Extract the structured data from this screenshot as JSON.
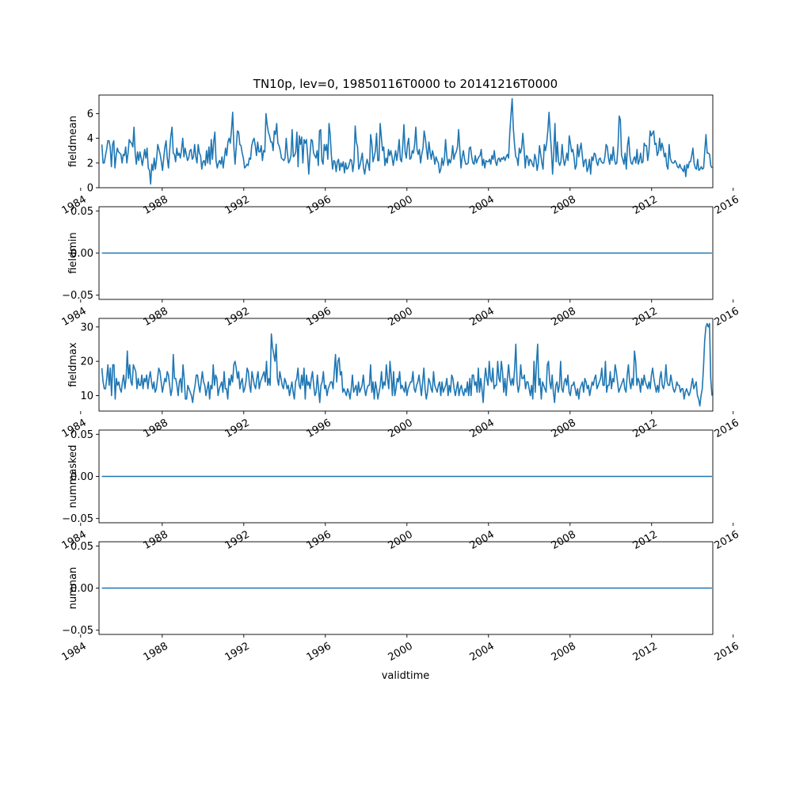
{
  "chart_data": {
    "type": "line",
    "title": "TN10p, lev=0, 19850116T0000 to 20141216T0000",
    "xlabel": "validtime",
    "line_color": "#1f77b4",
    "x_range": [
      "1985-01-16",
      "2014-12-16"
    ],
    "x_ticks": [
      "1984",
      "1988",
      "1992",
      "1996",
      "2000",
      "2004",
      "2008",
      "2012",
      "2016"
    ],
    "x_lim": [
      1984.9,
      2015.0
    ],
    "panels": [
      {
        "ylabel": "fieldmean",
        "ylim": [
          0,
          7.5
        ],
        "y_ticks": [
          "0",
          "2",
          "4",
          "6"
        ],
        "y_tick_values": [
          0,
          2,
          4,
          6
        ],
        "values": [
          3.5,
          2.0,
          2.0,
          2.6,
          3.1,
          3.8,
          3.8,
          3.3,
          1.7,
          3.5,
          3.8,
          1.6,
          2.6,
          3.2,
          2.9,
          2.8,
          2.7,
          2.0,
          2.7,
          2.6,
          3.3,
          2.0,
          2.8,
          3.9,
          3.7,
          3.6,
          3.3,
          4.9,
          2.8,
          1.9,
          2.9,
          2.2,
          2.9,
          2.4,
          1.8,
          2.4,
          3.1,
          2.4,
          3.2,
          1.6,
          1.4,
          0.3,
          1.9,
          1.4,
          2.4,
          1.5,
          2.3,
          3.5,
          3.1,
          2.7,
          2.1,
          1.4,
          2.4,
          3.3,
          3.8,
          2.4,
          1.6,
          3.0,
          4.2,
          4.9,
          2.8,
          2.7,
          2.1,
          3.2,
          2.6,
          2.8,
          2.4,
          3.1,
          4.0,
          2.5,
          3.2,
          2.7,
          2.2,
          2.4,
          3.0,
          3.1,
          2.3,
          2.5,
          3.5,
          2.5,
          2.0,
          3.5,
          2.8,
          2.6,
          1.5,
          2.1,
          2.2,
          1.8,
          3.0,
          2.0,
          3.3,
          1.9,
          3.9,
          2.3,
          3.7,
          4.5,
          2.2,
          1.6,
          2.0,
          2.2,
          1.9,
          2.5,
          1.6,
          2.4,
          3.2,
          2.6,
          3.7,
          4.0,
          3.6,
          4.7,
          6.1,
          3.3,
          1.9,
          3.3,
          4.6,
          4.5,
          3.5,
          3.4,
          2.8,
          2.4,
          1.6,
          1.7,
          1.9,
          1.8,
          2.4,
          2.3,
          3.4,
          3.8,
          4.0,
          3.4,
          2.6,
          3.7,
          2.9,
          2.9,
          3.4,
          2.2,
          3.0,
          2.9,
          6.0,
          5.1,
          4.5,
          4.2,
          3.7,
          3.7,
          3.0,
          4.6,
          4.3,
          5.2,
          3.6,
          3.4,
          3.0,
          2.4,
          2.3,
          2.2,
          2.4,
          4.0,
          2.8,
          2.0,
          2.2,
          2.6,
          4.7,
          2.5,
          2.6,
          2.9,
          4.5,
          1.7,
          4.2,
          3.5,
          4.1,
          2.0,
          3.9,
          3.6,
          3.9,
          2.6,
          1.1,
          2.7,
          3.9,
          3.8,
          2.8,
          2.6,
          2.4,
          3.0,
          1.8,
          4.6,
          4.7,
          2.2,
          1.9,
          3.5,
          3.0,
          3.5,
          2.3,
          5.2,
          4.3,
          2.6,
          1.5,
          2.2,
          2.1,
          1.3,
          2.1,
          2.3,
          1.4,
          2.0,
          1.7,
          2.1,
          1.2,
          2.0,
          1.5,
          1.6,
          1.9,
          2.3,
          2.2,
          1.3,
          2.1,
          5.0,
          3.7,
          3.3,
          1.5,
          1.8,
          2.3,
          2.8,
          1.6,
          1.1,
          1.8,
          2.3,
          1.9,
          1.4,
          4.3,
          3.6,
          2.1,
          2.5,
          3.0,
          4.4,
          2.2,
          2.2,
          5.2,
          4.1,
          3.0,
          3.3,
          1.8,
          2.4,
          2.0,
          3.1,
          2.6,
          3.0,
          2.5,
          1.8,
          2.4,
          3.0,
          2.2,
          2.9,
          3.9,
          2.3,
          2.1,
          3.4,
          5.1,
          2.9,
          2.4,
          3.5,
          4.0,
          2.3,
          2.4,
          3.0,
          2.8,
          3.5,
          4.9,
          3.1,
          2.7,
          3.1,
          2.0,
          2.7,
          3.2,
          4.6,
          4.0,
          3.1,
          2.3,
          3.7,
          2.9,
          2.3,
          3.0,
          2.6,
          1.9,
          2.5,
          2.2,
          2.0,
          1.2,
          1.5,
          2.4,
          1.8,
          2.3,
          3.9,
          2.6,
          1.8,
          2.3,
          2.0,
          2.4,
          3.4,
          2.3,
          2.7,
          2.9,
          3.3,
          4.7,
          3.1,
          1.6,
          2.5,
          3.0,
          2.3,
          1.9,
          1.9,
          2.0,
          3.2,
          3.3,
          2.5,
          2.0,
          1.9,
          2.6,
          2.0,
          2.3,
          2.5,
          2.6,
          3.1,
          1.8,
          2.3,
          1.6,
          2.2,
          2.1,
          2.1,
          2.3,
          1.9,
          2.6,
          2.3,
          3.0,
          2.1,
          1.8,
          2.3,
          2.4,
          2.1,
          2.4,
          2.3,
          2.5,
          2.2,
          2.5,
          2.7,
          2.4,
          4.4,
          5.9,
          7.2,
          4.8,
          3.5,
          2.5,
          2.4,
          1.8,
          3.2,
          2.8,
          3.2,
          4.4,
          3.2,
          1.6,
          2.6,
          2.5,
          1.8,
          2.3,
          2.2,
          1.9,
          1.7,
          2.7,
          2.3,
          1.4,
          2.0,
          3.4,
          2.7,
          2.0,
          1.5,
          3.5,
          3.0,
          3.6,
          4.6,
          6.1,
          4.5,
          3.0,
          1.1,
          2.9,
          5.2,
          2.1,
          3.7,
          2.1,
          1.8,
          2.1,
          3.5,
          2.4,
          1.8,
          2.2,
          2.8,
          2.2,
          4.2,
          3.6,
          2.9,
          3.1,
          2.5,
          1.5,
          1.8,
          3.5,
          2.5,
          3.1,
          3.6,
          2.6,
          1.7,
          2.2,
          2.3,
          1.3,
          1.6,
          2.3,
          1.1,
          2.5,
          2.2,
          2.8,
          2.7,
          2.1,
          1.8,
          2.3,
          2.4,
          2.1,
          2.0,
          2.0,
          2.5,
          3.5,
          3.3,
          2.4,
          1.9,
          2.7,
          2.2,
          3.3,
          2.3,
          1.9,
          2.0,
          3.3,
          5.8,
          5.5,
          2.6,
          2.3,
          1.9,
          2.8,
          1.5,
          3.4,
          4.1,
          2.6,
          2.0,
          1.9,
          2.3,
          2.5,
          2.0,
          3.1,
          1.9,
          2.2,
          2.8,
          2.0,
          2.1,
          3.6,
          3.4,
          3.4,
          2.2,
          2.9,
          4.6,
          4.2,
          4.4,
          4.6,
          3.5,
          3.6,
          2.6,
          2.9,
          4.0,
          3.0,
          3.6,
          3.2,
          2.5,
          2.8,
          1.8,
          1.5,
          3.5,
          2.4,
          2.1,
          2.0,
          2.0,
          2.2,
          2.0,
          1.7,
          1.6,
          1.9,
          1.6,
          1.5,
          1.3,
          1.8,
          0.9,
          1.9,
          1.6,
          2.1,
          2.1,
          2.6,
          3.2,
          2.0,
          1.6,
          1.5,
          2.3,
          1.4,
          1.5,
          1.7,
          1.5,
          1.6,
          3.0,
          4.3,
          2.8,
          2.8,
          2.7,
          1.8,
          1.6
        ]
      },
      {
        "ylabel": "fieldmin",
        "ylim": [
          -0.055,
          0.055
        ],
        "y_ticks": [
          "0.05",
          "0.00",
          "−0.05"
        ],
        "y_tick_values": [
          0.05,
          0.0,
          -0.05
        ],
        "constant_value": 0.0
      },
      {
        "ylabel": "fieldmax",
        "ylim": [
          5.5,
          32.5
        ],
        "y_ticks": [
          "10",
          "20",
          "30"
        ],
        "y_tick_values": [
          10,
          20,
          30
        ],
        "values": [
          18,
          14,
          12,
          12,
          15,
          19,
          13,
          18,
          10,
          19,
          19,
          9,
          15,
          13,
          14,
          12,
          11,
          14,
          16,
          12,
          15,
          23,
          15,
          19,
          14,
          13,
          19,
          18,
          17,
          12,
          15,
          13,
          13,
          16,
          12,
          15,
          14,
          16,
          12,
          15,
          17,
          14,
          12,
          14,
          11,
          12,
          15,
          18,
          17,
          14,
          11,
          13,
          15,
          14,
          17,
          16,
          13,
          10,
          12,
          22,
          15,
          15,
          13,
          10,
          14,
          15,
          11,
          19,
          15,
          9,
          9,
          13,
          12,
          11,
          10,
          8,
          11,
          13,
          16,
          16,
          13,
          11,
          14,
          17,
          14,
          13,
          10,
          12,
          14,
          9,
          13,
          12,
          19,
          13,
          16,
          15,
          10,
          12,
          13,
          14,
          11,
          17,
          12,
          12,
          9,
          15,
          13,
          16,
          14,
          19,
          20,
          18,
          15,
          17,
          12,
          14,
          15,
          11,
          12,
          14,
          18,
          17,
          13,
          11,
          17,
          15,
          13,
          12,
          15,
          17,
          12,
          14,
          15,
          16,
          17,
          14,
          20,
          13,
          15,
          13,
          28,
          24,
          22,
          20,
          25,
          15,
          13,
          17,
          15,
          13,
          12,
          15,
          14,
          12,
          13,
          10,
          12,
          14,
          11,
          9,
          14,
          15,
          18,
          13,
          12,
          16,
          13,
          18,
          9,
          16,
          13,
          14,
          12,
          15,
          17,
          13,
          10,
          11,
          16,
          12,
          8,
          13,
          14,
          17,
          12,
          13,
          10,
          12,
          13,
          14,
          14,
          12,
          17,
          22,
          14,
          20,
          21,
          16,
          17,
          11,
          12,
          11,
          10,
          12,
          11,
          9,
          12,
          16,
          11,
          12,
          13,
          10,
          14,
          11,
          12,
          13,
          16,
          12,
          10,
          12,
          13,
          13,
          19,
          11,
          14,
          9,
          14,
          12,
          9,
          11,
          13,
          17,
          12,
          14,
          13,
          19,
          15,
          12,
          20,
          16,
          10,
          17,
          10,
          12,
          15,
          14,
          17,
          12,
          13,
          12,
          11,
          14,
          10,
          12,
          13,
          14,
          14,
          17,
          12,
          11,
          13,
          14,
          16,
          13,
          10,
          14,
          18,
          12,
          9,
          11,
          15,
          14,
          12,
          11,
          17,
          13,
          12,
          11,
          13,
          14,
          10,
          14,
          11,
          12,
          13,
          15,
          10,
          13,
          11,
          16,
          15,
          12,
          10,
          12,
          14,
          10,
          12,
          13,
          11,
          10,
          12,
          11,
          14,
          10,
          15,
          10,
          16,
          16,
          13,
          14,
          11,
          18,
          11,
          15,
          12,
          8,
          14,
          18,
          15,
          13,
          20,
          15,
          14,
          18,
          12,
          13,
          13,
          20,
          15,
          14,
          20,
          17,
          11,
          15,
          10,
          15,
          19,
          15,
          13,
          15,
          13,
          18,
          25,
          14,
          11,
          13,
          19,
          15,
          15,
          16,
          12,
          14,
          14,
          12,
          10,
          13,
          9,
          20,
          11,
          19,
          25,
          13,
          15,
          9,
          14,
          13,
          12,
          11,
          19,
          20,
          14,
          12,
          16,
          11,
          8,
          13,
          14,
          11,
          13,
          20,
          12,
          11,
          14,
          15,
          13,
          16,
          11,
          10,
          13,
          13,
          14,
          12,
          10,
          12,
          9,
          12,
          13,
          14,
          11,
          15,
          14,
          12,
          13,
          10,
          12,
          14,
          13,
          15,
          16,
          12,
          13,
          14,
          15,
          18,
          13,
          13,
          20,
          11,
          13,
          13,
          17,
          12,
          15,
          14,
          19,
          17,
          14,
          11,
          12,
          13,
          14,
          15,
          12,
          11,
          16,
          19,
          14,
          12,
          15,
          13,
          23,
          20,
          13,
          15,
          14,
          11,
          15,
          13,
          16,
          14,
          13,
          12,
          14,
          12,
          16,
          18,
          15,
          13,
          11,
          13,
          11,
          15,
          17,
          13,
          12,
          14,
          19,
          14,
          13,
          13,
          16,
          14,
          12,
          11,
          12,
          14,
          13,
          13,
          11,
          12,
          12,
          9,
          11,
          12,
          11,
          10,
          11,
          13,
          15,
          12,
          13,
          14,
          10,
          9,
          7,
          10,
          12,
          18,
          26,
          30,
          31,
          30,
          31,
          15,
          10
        ]
      },
      {
        "ylabel": "nummasked",
        "ylim": [
          -0.055,
          0.055
        ],
        "y_ticks": [
          "0.05",
          "0.00",
          "−0.05"
        ],
        "y_tick_values": [
          0.05,
          0.0,
          -0.05
        ],
        "constant_value": 0.0
      },
      {
        "ylabel": "numnan",
        "ylim": [
          -0.055,
          0.055
        ],
        "y_ticks": [
          "0.05",
          "0.00",
          "−0.05"
        ],
        "y_tick_values": [
          0.05,
          0.0,
          -0.05
        ],
        "constant_value": 0.0
      }
    ]
  }
}
